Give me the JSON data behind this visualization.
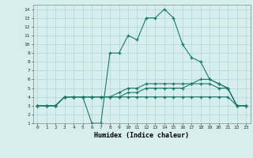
{
  "xlabel": "Humidex (Indice chaleur)",
  "background_color": "#d6eeee",
  "grid_color": "#b8d8d8",
  "line_color": "#1a7a6a",
  "xlim": [
    -0.5,
    23.5
  ],
  "ylim": [
    1,
    14.5
  ],
  "yticks": [
    1,
    2,
    3,
    4,
    5,
    6,
    7,
    8,
    9,
    10,
    11,
    12,
    13,
    14
  ],
  "xticks": [
    0,
    1,
    2,
    3,
    4,
    5,
    6,
    7,
    8,
    9,
    10,
    11,
    12,
    13,
    14,
    15,
    16,
    17,
    18,
    19,
    20,
    21,
    22,
    23
  ],
  "curves": [
    {
      "x": [
        0,
        1,
        2,
        3,
        4,
        5,
        6,
        7,
        8,
        9,
        10,
        11,
        12,
        13,
        14,
        15,
        16,
        17,
        18,
        19,
        20,
        21,
        22,
        23
      ],
      "y": [
        3,
        3,
        3,
        4,
        4,
        4,
        1,
        1,
        9,
        9,
        11,
        10.5,
        13,
        13,
        14,
        13,
        10,
        8.5,
        8,
        6,
        5.5,
        5,
        3,
        3
      ]
    },
    {
      "x": [
        0,
        1,
        2,
        3,
        4,
        5,
        6,
        7,
        8,
        9,
        10,
        11,
        12,
        13,
        14,
        15,
        16,
        17,
        18,
        19,
        20,
        21,
        22,
        23
      ],
      "y": [
        3,
        3,
        3,
        4,
        4,
        4,
        4,
        4,
        4,
        4.5,
        5,
        5,
        5.5,
        5.5,
        5.5,
        5.5,
        5.5,
        5.5,
        6,
        6,
        5.5,
        5,
        3,
        3
      ]
    },
    {
      "x": [
        0,
        1,
        2,
        3,
        4,
        5,
        6,
        7,
        8,
        9,
        10,
        11,
        12,
        13,
        14,
        15,
        16,
        17,
        18,
        19,
        20,
        21,
        22,
        23
      ],
      "y": [
        3,
        3,
        3,
        4,
        4,
        4,
        4,
        4,
        4,
        4,
        4.5,
        4.5,
        5,
        5,
        5,
        5,
        5,
        5.5,
        5.5,
        5.5,
        5,
        5,
        3,
        3
      ]
    },
    {
      "x": [
        0,
        1,
        2,
        3,
        4,
        5,
        6,
        7,
        8,
        9,
        10,
        11,
        12,
        13,
        14,
        15,
        16,
        17,
        18,
        19,
        20,
        21,
        22,
        23
      ],
      "y": [
        3,
        3,
        3,
        4,
        4,
        4,
        4,
        4,
        4,
        4,
        4,
        4,
        4,
        4,
        4,
        4,
        4,
        4,
        4,
        4,
        4,
        4,
        3,
        3
      ]
    }
  ]
}
